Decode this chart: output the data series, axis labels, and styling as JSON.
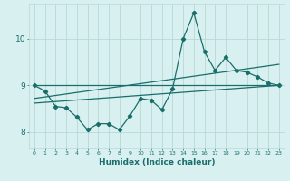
{
  "xlabel": "Humidex (Indice chaleur)",
  "bg_color": "#d8f0f0",
  "grid_color": "#b8d8d8",
  "line_color": "#1a6e6a",
  "xlim": [
    -0.5,
    23.5
  ],
  "ylim": [
    7.65,
    10.75
  ],
  "yticks": [
    8,
    9,
    10
  ],
  "xticks": [
    0,
    1,
    2,
    3,
    4,
    5,
    6,
    7,
    8,
    9,
    10,
    11,
    12,
    13,
    14,
    15,
    16,
    17,
    18,
    19,
    20,
    21,
    22,
    23
  ],
  "line1_x": [
    0,
    1,
    2,
    3,
    4,
    5,
    6,
    7,
    8,
    9,
    10,
    11,
    12,
    13,
    14,
    15,
    16,
    17,
    18,
    19,
    20,
    21,
    22,
    23
  ],
  "line1_y": [
    9.0,
    8.88,
    8.55,
    8.52,
    8.32,
    8.05,
    8.18,
    8.18,
    8.05,
    8.35,
    8.72,
    8.68,
    8.48,
    8.92,
    10.0,
    10.55,
    9.72,
    9.32,
    9.6,
    9.32,
    9.28,
    9.18,
    9.05,
    9.0
  ],
  "line2_x": [
    0,
    23
  ],
  "line2_y": [
    9.0,
    9.0
  ],
  "line3_x": [
    0,
    23
  ],
  "line3_y": [
    8.62,
    9.0
  ],
  "line4_x": [
    0,
    23
  ],
  "line4_y": [
    8.72,
    9.45
  ]
}
